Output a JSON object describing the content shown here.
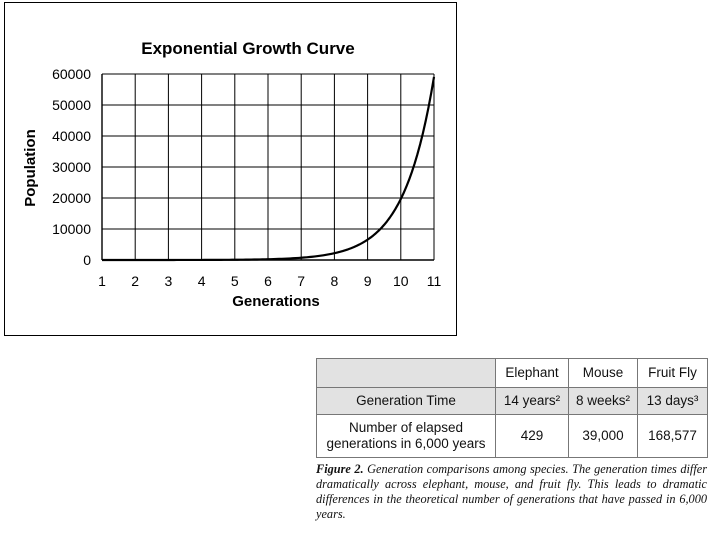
{
  "chart_data": {
    "type": "line",
    "title": "Exponential Growth Curve",
    "xlabel": "Generations",
    "ylabel": "Population",
    "xlim": [
      1,
      11
    ],
    "ylim": [
      0,
      60000
    ],
    "x_ticks": [
      "1",
      "2",
      "3",
      "4",
      "5",
      "6",
      "7",
      "8",
      "9",
      "10",
      "11"
    ],
    "y_ticks": [
      "0",
      "10000",
      "20000",
      "30000",
      "40000",
      "50000",
      "60000"
    ],
    "grid": true,
    "legend": "none",
    "line_color": "#000000",
    "series": [
      {
        "x": [
          1,
          2,
          3,
          4,
          5,
          6,
          7,
          8,
          9,
          10,
          11
        ],
        "values": [
          1,
          3,
          9,
          27,
          81,
          243,
          729,
          2187,
          6561,
          19683,
          59049
        ]
      }
    ]
  },
  "table": {
    "columns": [
      "",
      "Elephant",
      "Mouse",
      "Fruit Fly"
    ],
    "rows": [
      {
        "label": "Generation Time",
        "cells": [
          "14 years²",
          "8 weeks²",
          "13 days³"
        ]
      },
      {
        "label_line1": "Number of elapsed",
        "label_line2": "generations in 6,000 years",
        "cells": [
          "429",
          "39,000",
          "168,577"
        ]
      }
    ]
  },
  "caption": {
    "figure_label": "Figure 2.",
    "text": " Generation comparisons among species. The generation times differ dramatically across elephant, mouse, and fruit fly. This leads to dramatic differences in the theoretical number of generations that have passed in 6,000 years."
  }
}
